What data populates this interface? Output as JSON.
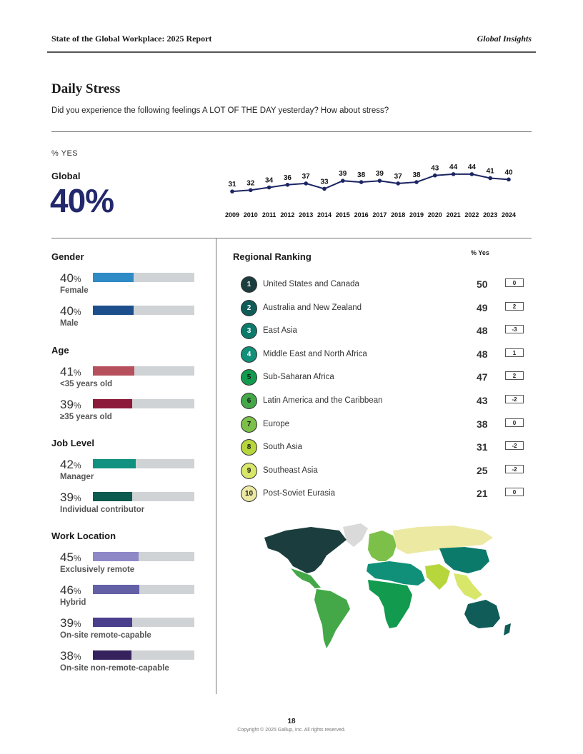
{
  "header": {
    "report_title": "State of the Global Workplace: 2025 Report",
    "brand": "Global Insights"
  },
  "section": {
    "title": "Daily Stress",
    "question": "Did you experience the following feelings A LOT OF THE DAY yesterday? How about stress?"
  },
  "summary": {
    "pct_yes_label": "% YES",
    "global_label": "Global",
    "global_value": "40%"
  },
  "chart_data": {
    "type": "line",
    "x": [
      "2009",
      "2010",
      "2011",
      "2012",
      "2013",
      "2014",
      "2015",
      "2016",
      "2017",
      "2018",
      "2019",
      "2020",
      "2021",
      "2022",
      "2023",
      "2024"
    ],
    "series": [
      {
        "values": [
          31,
          32,
          34,
          36,
          37,
          33,
          39,
          38,
          39,
          37,
          38,
          43,
          44,
          44,
          41,
          40
        ]
      }
    ],
    "color": "#1c2563"
  },
  "demographics": [
    {
      "title": "Gender",
      "items": [
        {
          "value": "40",
          "pct_sign": "%",
          "pct": 40,
          "label": "Female",
          "color": "#2e8bc6"
        },
        {
          "value": "40",
          "pct_sign": "%",
          "pct": 40,
          "label": "Male",
          "color": "#1c4f8c"
        }
      ]
    },
    {
      "title": "Age",
      "items": [
        {
          "value": "41",
          "pct_sign": "%",
          "pct": 41,
          "label": "<35 years old",
          "color": "#b5505c"
        },
        {
          "value": "39",
          "pct_sign": "%",
          "pct": 39,
          "label": "≥35 years old",
          "color": "#8d1a3a"
        }
      ]
    },
    {
      "title": "Job Level",
      "items": [
        {
          "value": "42",
          "pct_sign": "%",
          "pct": 42,
          "label": "Manager",
          "color": "#119180"
        },
        {
          "value": "39",
          "pct_sign": "%",
          "pct": 39,
          "label": "Individual contributor",
          "color": "#0d5a4e"
        }
      ]
    },
    {
      "title": "Work Location",
      "items": [
        {
          "value": "45",
          "pct_sign": "%",
          "pct": 45,
          "label": "Exclusively remote",
          "color": "#8f88c7"
        },
        {
          "value": "46",
          "pct_sign": "%",
          "pct": 46,
          "label": "Hybrid",
          "color": "#6460a6"
        },
        {
          "value": "39",
          "pct_sign": "%",
          "pct": 39,
          "label": "On-site remote-capable",
          "color": "#4a3f8c"
        },
        {
          "value": "38",
          "pct_sign": "%",
          "pct": 38,
          "label": "On-site non-remote-capable",
          "color": "#36235e"
        }
      ]
    }
  ],
  "regional_ranking": {
    "title": "Regional Ranking",
    "column_header": "% Yes",
    "rows": [
      {
        "rank": "1",
        "region": "United States and Canada",
        "value": "50",
        "change": "0",
        "color": "#1b3d3d",
        "text_color": "#ffffff"
      },
      {
        "rank": "2",
        "region": "Australia and New Zealand",
        "value": "49",
        "change": "2",
        "color": "#0f5c58",
        "text_color": "#ffffff"
      },
      {
        "rank": "3",
        "region": "East Asia",
        "value": "48",
        "change": "-3",
        "color": "#0c7a6a",
        "text_color": "#ffffff"
      },
      {
        "rank": "4",
        "region": "Middle East and North Africa",
        "value": "48",
        "change": "1",
        "color": "#109079",
        "text_color": "#ffffff"
      },
      {
        "rank": "5",
        "region": "Sub-Saharan Africa",
        "value": "47",
        "change": "2",
        "color": "#129a4f",
        "text_color": "#1a1a1a"
      },
      {
        "rank": "6",
        "region": "Latin America and the Caribbean",
        "value": "43",
        "change": "-2",
        "color": "#44a848",
        "text_color": "#1a1a1a"
      },
      {
        "rank": "7",
        "region": "Europe",
        "value": "38",
        "change": "0",
        "color": "#7cc04a",
        "text_color": "#1a1a1a"
      },
      {
        "rank": "8",
        "region": "South Asia",
        "value": "31",
        "change": "-2",
        "color": "#b7d63c",
        "text_color": "#1a1a1a"
      },
      {
        "rank": "9",
        "region": "Southeast Asia",
        "value": "25",
        "change": "-2",
        "color": "#d8e66a",
        "text_color": "#1a1a1a"
      },
      {
        "rank": "10",
        "region": "Post-Soviet Eurasia",
        "value": "21",
        "change": "0",
        "color": "#ece9a3",
        "text_color": "#1a1a1a"
      }
    ]
  },
  "map": {
    "no_data_color": "#dadada"
  },
  "footer": {
    "page_number": "18",
    "copyright": "Copyright © 2025 Gallup, Inc. All rights reserved."
  }
}
